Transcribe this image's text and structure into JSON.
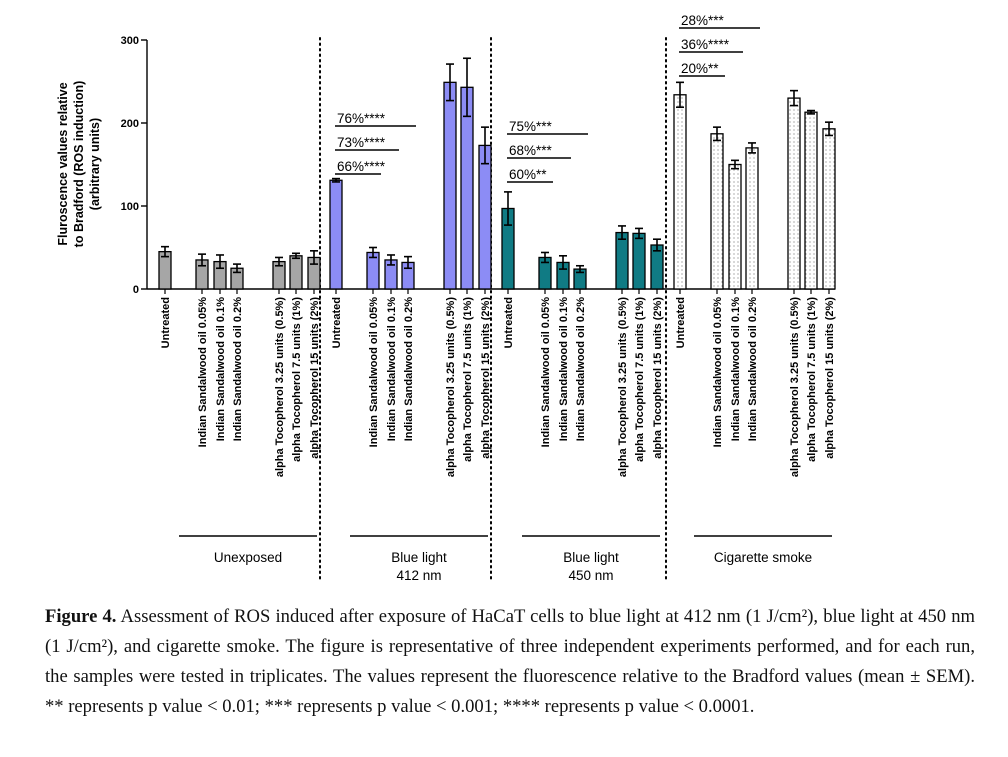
{
  "chart_data": {
    "type": "bar",
    "ylabel_lines": [
      "Fluroscence values relative",
      "to Bradford (ROS induction)",
      "(arbitrary units)"
    ],
    "ylim": [
      0,
      300
    ],
    "yticks": [
      0,
      100,
      200,
      300
    ],
    "grid": false,
    "bar_labels": [
      "Untreated",
      "Indian Sandalwood oil 0.05%",
      "Indian Sandalwood oil 0.1%",
      "Indian Sandalwood oil 0.2%",
      "alpha Tocopherol 3.25 units (0.5%)",
      "alpha Tocopherol 7.5 units (1%)",
      "alpha Tocopherol 15 units (2%)"
    ],
    "groups": [
      {
        "name_lines": [
          "Unexposed"
        ],
        "color": "#a6a6a6",
        "pattern": "solid",
        "values": [
          45,
          35,
          33,
          25,
          33,
          40,
          38
        ],
        "errors": [
          6,
          7,
          8,
          5,
          5,
          3,
          8
        ],
        "annotations": []
      },
      {
        "name_lines": [
          "Blue light",
          "412 nm"
        ],
        "color": "#8c8cf5",
        "pattern": "solid",
        "values": [
          131,
          44,
          35,
          32,
          249,
          243,
          173
        ],
        "errors": [
          2,
          6,
          6,
          7,
          22,
          35,
          22
        ],
        "annotations": [
          {
            "label": "66%****",
            "to_bar": 1
          },
          {
            "label": "73%****",
            "to_bar": 2
          },
          {
            "label": "76%****",
            "to_bar": 3
          }
        ]
      },
      {
        "name_lines": [
          "Blue light",
          "450 nm"
        ],
        "color": "#107b84",
        "pattern": "solid",
        "values": [
          97,
          38,
          32,
          24,
          68,
          67,
          53
        ],
        "errors": [
          20,
          6,
          8,
          4,
          8,
          6,
          7
        ],
        "annotations": [
          {
            "label": "60%**",
            "to_bar": 1
          },
          {
            "label": "68%***",
            "to_bar": 2
          },
          {
            "label": "75%***",
            "to_bar": 3
          }
        ]
      },
      {
        "name_lines": [
          "Cigarette smoke"
        ],
        "color": "#ffffff",
        "pattern": "dotted",
        "values": [
          234,
          187,
          150,
          170,
          230,
          213,
          193
        ],
        "errors": [
          15,
          8,
          5,
          6,
          9,
          2,
          8
        ],
        "annotations": [
          {
            "label": "20%**",
            "to_bar": 1
          },
          {
            "label": "36%****",
            "to_bar": 2
          },
          {
            "label": "28%***",
            "to_bar": 3
          }
        ]
      }
    ]
  },
  "caption": {
    "label": "Figure 4.",
    "text": " Assessment of ROS induced after exposure of HaCaT cells to blue light at 412 nm (1 J/cm²), blue light at 450 nm (1 J/cm²), and cigarette smoke. The figure is representative of three independent experiments performed, and for each run, the samples were tested in triplicates. The values represent the fluorescence relative to the Bradford values (mean ± SEM). ** represents p value < 0.01; *** represents p value < 0.001; **** represents p value < 0.0001."
  }
}
